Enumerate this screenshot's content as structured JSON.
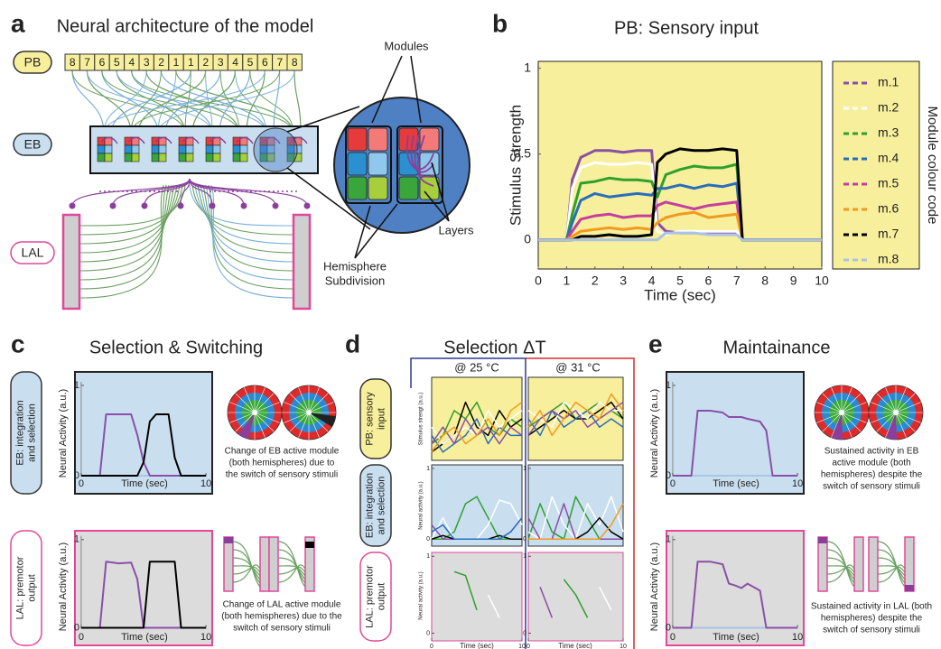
{
  "figure": {
    "a": {
      "letter": "a",
      "title": "Neural architecture of the model",
      "pb": "PB",
      "eb": "EB",
      "lal": "LAL",
      "pb_numbers": [
        8,
        7,
        6,
        5,
        4,
        3,
        2,
        1,
        1,
        2,
        3,
        4,
        5,
        6,
        7,
        8
      ],
      "modules": "Modules",
      "hemisphere": [
        "Hemisphere",
        "Subdivision"
      ],
      "layers": "Layers"
    },
    "b": {
      "letter": "b",
      "title": "PB: Sensory input"
    },
    "c": {
      "letter": "c",
      "title": "Selection & Switching",
      "eb_side": [
        "EB: integration",
        "and selection"
      ],
      "lal_side": [
        "LAL: premotor",
        "output"
      ],
      "eb_caption": [
        "Change of EB active module",
        "(both hemispheres) due to",
        "the switch of sensory stimuli"
      ],
      "lal_caption": [
        "Change of LAL active module",
        "(both hemispheres) due to the",
        "switch of sensory stimuli"
      ]
    },
    "d": {
      "letter": "d",
      "title": "Selection ΔT",
      "col1": "@ 25 °C",
      "col2": "@ 31 °C",
      "pb_side": [
        "PB: sensory",
        "input"
      ],
      "eb_side": [
        "EB: integration",
        "and selection"
      ],
      "lal_side": [
        "LAL: premotor",
        "output"
      ]
    },
    "e": {
      "letter": "e",
      "title": "Maintainance",
      "eb_caption": [
        "Sustained activity in EB",
        "active module (both",
        "hemispheres) despite the",
        "switch of sensory stimuli"
      ],
      "lal_caption": [
        "Sustained activity in LAL (both",
        "hemispheres) despite the",
        "switch of sensory stimuli"
      ]
    }
  },
  "chart_data": [
    {
      "type": "line",
      "ylabel": "Stimulus Strength",
      "xlabel": "Time (sec)",
      "legend": "right",
      "legend_title": "Module colour code",
      "x": [
        0,
        1,
        1.2,
        1.5,
        2,
        2.5,
        3,
        3.5,
        4,
        4.2,
        4.5,
        5,
        5.5,
        6,
        6.5,
        7,
        7.2,
        10
      ],
      "xlim": [
        0,
        10
      ],
      "ylim": [
        -0.17,
        1.04
      ],
      "xticks": [
        0,
        1,
        2,
        3,
        4,
        5,
        6,
        7,
        8,
        9,
        10
      ],
      "yticks": [
        0,
        0.5,
        1
      ],
      "series": [
        {
          "name": "m.1",
          "color": "#8a4fa8",
          "values": [
            0,
            0,
            0.35,
            0.48,
            0.52,
            0.52,
            0.51,
            0.52,
            0.52,
            0.1,
            0.05,
            0.04,
            0.04,
            0.04,
            0.04,
            0.04,
            0,
            0
          ]
        },
        {
          "name": "m.2",
          "color": "#ffffff",
          "values": [
            0,
            0,
            0.3,
            0.42,
            0.45,
            0.44,
            0.44,
            0.45,
            0.44,
            0.05,
            0.03,
            0.05,
            0.05,
            0.05,
            0.05,
            0.05,
            0,
            0
          ]
        },
        {
          "name": "m.3",
          "color": "#2ea02e",
          "values": [
            0,
            0,
            0.15,
            0.33,
            0.34,
            0.36,
            0.35,
            0.35,
            0.34,
            0.25,
            0.38,
            0.41,
            0.43,
            0.42,
            0.42,
            0.44,
            0,
            0
          ]
        },
        {
          "name": "m.4",
          "color": "#2a6ebb",
          "values": [
            0,
            0,
            0.1,
            0.23,
            0.27,
            0.25,
            0.26,
            0.27,
            0.26,
            0.3,
            0.3,
            0.32,
            0.3,
            0.32,
            0.31,
            0.33,
            0,
            0
          ]
        },
        {
          "name": "m.5",
          "color": "#c43fa0",
          "values": [
            0,
            0,
            0.05,
            0.12,
            0.14,
            0.15,
            0.13,
            0.14,
            0.14,
            0.2,
            0.22,
            0.2,
            0.18,
            0.2,
            0.21,
            0.22,
            0,
            0
          ]
        },
        {
          "name": "m.6",
          "color": "#f39a1e",
          "values": [
            0,
            0,
            0.02,
            0.05,
            0.06,
            0.07,
            0.06,
            0.07,
            0.06,
            0.1,
            0.13,
            0.15,
            0.16,
            0.13,
            0.14,
            0.15,
            0,
            0
          ]
        },
        {
          "name": "m.7",
          "color": "#000000",
          "values": [
            0,
            0,
            0,
            0.02,
            0.02,
            0.03,
            0.02,
            0.02,
            0.03,
            0.45,
            0.5,
            0.53,
            0.52,
            0.52,
            0.53,
            0.52,
            0,
            0
          ]
        },
        {
          "name": "m.8",
          "color": "#a9c4e4",
          "values": [
            0,
            0,
            0,
            0,
            0,
            0,
            0,
            0,
            0,
            0,
            0.04,
            0.04,
            0.04,
            0.03,
            0.03,
            0.03,
            0,
            0
          ]
        }
      ]
    },
    {
      "type": "line",
      "ylabel": "Neural Activity (a.u.)",
      "xlabel": "Time (sec)",
      "x": [
        0,
        1.5,
        2,
        3,
        4,
        4.5,
        5,
        5.5,
        6,
        7,
        7.5,
        8,
        10
      ],
      "xlim": [
        -0.5,
        10.5
      ],
      "ylim": [
        -0.2,
        1.15
      ],
      "xticks": [
        0,
        10
      ],
      "yticks": [
        0,
        1
      ],
      "series": [
        {
          "color": "#a9c4e4",
          "values": [
            0,
            0,
            0,
            0,
            0,
            0,
            0,
            0,
            0,
            0,
            0,
            0,
            0
          ]
        },
        {
          "color": "#8a4fa8",
          "values": [
            0,
            0,
            0.68,
            0.68,
            0.68,
            0.45,
            0.15,
            0,
            0,
            0,
            0,
            0,
            0
          ]
        },
        {
          "color": "#000000",
          "values": [
            0,
            0,
            0,
            0,
            0,
            0,
            0.15,
            0.6,
            0.68,
            0.68,
            0.2,
            0,
            0
          ]
        }
      ]
    },
    {
      "type": "line",
      "ylabel": "Neural Activity (a.u.)",
      "xlabel": "Time (sec)",
      "x": [
        0,
        1.5,
        2,
        3,
        4,
        4.5,
        5,
        5.5,
        6,
        7,
        7.5,
        8,
        10
      ],
      "xlim": [
        -0.5,
        10.5
      ],
      "ylim": [
        -0.2,
        1.1
      ],
      "xticks": [
        0,
        10
      ],
      "yticks": [
        0,
        1
      ],
      "series": [
        {
          "color": "#a9c4e4",
          "values": [
            0,
            0,
            0,
            0,
            0,
            0,
            0,
            0,
            0,
            0,
            0,
            0,
            0
          ]
        },
        {
          "color": "#8a4fa8",
          "values": [
            0,
            0,
            0.75,
            0.73,
            0.74,
            0.55,
            0,
            0,
            0,
            0,
            0,
            0,
            0
          ]
        },
        {
          "color": "#000000",
          "values": [
            0,
            0,
            0,
            0,
            0,
            0,
            0,
            0.75,
            0.75,
            0.75,
            0.75,
            0,
            0
          ]
        }
      ]
    },
    {
      "type": "line",
      "ylabel": "Stimulus strengt (a.u.)",
      "x": [
        0,
        1.25,
        2.5,
        3.75,
        5,
        6.25,
        7.5,
        8.75,
        10
      ],
      "xlim": [
        0,
        10
      ],
      "ylim": [
        0,
        1
      ],
      "series": [
        {
          "color": "#2ea02e",
          "values": [
            0.2,
            0.3,
            0.6,
            0.5,
            0.7,
            0.4,
            0.3,
            0.5,
            0.4
          ]
        },
        {
          "color": "#000000",
          "values": [
            0.1,
            0.2,
            0.3,
            0.7,
            0.4,
            0.3,
            0.6,
            0.4,
            0.5
          ]
        },
        {
          "color": "#2a6ebb",
          "values": [
            0.3,
            0.1,
            0.2,
            0.3,
            0.5,
            0.2,
            0.4,
            0.3,
            0.3
          ]
        },
        {
          "color": "#ffffff",
          "values": [
            0.4,
            0.2,
            0.3,
            0.4,
            0.3,
            0.6,
            0.4,
            0.5,
            0.6
          ]
        },
        {
          "color": "#8a4fa8",
          "values": [
            0.2,
            0.4,
            0.2,
            0.5,
            0.3,
            0.4,
            0.2,
            0.4,
            0.3
          ]
        },
        {
          "color": "#f39a1e",
          "values": [
            0.1,
            0.3,
            0.4,
            0.2,
            0.3,
            0.5,
            0.3,
            0.6,
            0.7
          ]
        }
      ]
    },
    {
      "type": "line",
      "x": [
        0,
        1.25,
        2.5,
        3.75,
        5,
        6.25,
        7.5,
        8.75,
        10
      ],
      "xlim": [
        0,
        10
      ],
      "ylim": [
        0,
        1
      ],
      "series": [
        {
          "color": "#2ea02e",
          "values": [
            0.4,
            0.5,
            0.6,
            0.7,
            0.5,
            0.6,
            0.7,
            0.6,
            0.5
          ]
        },
        {
          "color": "#000000",
          "values": [
            0.3,
            0.4,
            0.5,
            0.6,
            0.5,
            0.5,
            0.6,
            0.7,
            0.5
          ]
        },
        {
          "color": "#2a6ebb",
          "values": [
            0.5,
            0.3,
            0.6,
            0.4,
            0.5,
            0.6,
            0.4,
            0.5,
            0.4
          ]
        },
        {
          "color": "#ffffff",
          "values": [
            0.6,
            0.5,
            0.4,
            0.7,
            0.6,
            0.5,
            0.7,
            0.6,
            0.6
          ]
        },
        {
          "color": "#8a4fa8",
          "values": [
            0.3,
            0.5,
            0.6,
            0.5,
            0.6,
            0.4,
            0.5,
            0.6,
            0.7
          ]
        },
        {
          "color": "#f39a1e",
          "values": [
            0.4,
            0.6,
            0.3,
            0.5,
            0.7,
            0.6,
            0.5,
            0.8,
            0.6
          ]
        }
      ]
    },
    {
      "type": "line",
      "ylabel": "Neural activity (a.u.)",
      "x": [
        0,
        1.25,
        2.5,
        3.75,
        5,
        6.25,
        7.5,
        8.75,
        10
      ],
      "xlim": [
        0,
        10
      ],
      "ylim": [
        -0.1,
        1.05
      ],
      "yticks": [
        0,
        1
      ],
      "series": [
        {
          "color": "#2ea02e",
          "values": [
            0,
            0,
            0.1,
            0.5,
            0.6,
            0.3,
            0,
            0,
            0
          ]
        },
        {
          "color": "#ffffff",
          "values": [
            0,
            0.3,
            0,
            0,
            0,
            0.2,
            0.55,
            0.5,
            0.2
          ]
        },
        {
          "color": "#8a4fa8",
          "values": [
            0.2,
            0,
            0,
            0,
            0,
            0,
            0,
            0.1,
            0.3
          ]
        },
        {
          "color": "#000000",
          "values": [
            0,
            0.05,
            0,
            0,
            0,
            0,
            0.05,
            0,
            0
          ]
        },
        {
          "color": "#2a6ebb",
          "values": [
            0.1,
            0.2,
            0,
            0,
            0,
            0,
            0,
            0.1,
            0.3
          ]
        }
      ]
    },
    {
      "type": "line",
      "x": [
        0,
        1.25,
        2.5,
        3.75,
        5,
        6.25,
        7.5,
        8.75,
        10
      ],
      "xlim": [
        0,
        10
      ],
      "ylim": [
        -0.1,
        1.05
      ],
      "yticks": [
        0,
        1
      ],
      "series": [
        {
          "color": "#2ea02e",
          "values": [
            0,
            0.5,
            0.1,
            0,
            0.6,
            0.3,
            0,
            0,
            0
          ]
        },
        {
          "color": "#ffffff",
          "values": [
            0.1,
            0,
            0.6,
            0.2,
            0,
            0.5,
            0.2,
            0.6,
            0.1
          ]
        },
        {
          "color": "#8a4fa8",
          "values": [
            0.3,
            0,
            0,
            0.5,
            0,
            0,
            0,
            0,
            0
          ]
        },
        {
          "color": "#000000",
          "values": [
            0,
            0,
            0,
            0,
            0,
            0.1,
            0.3,
            0.1,
            0
          ]
        },
        {
          "color": "#f39a1e",
          "values": [
            0,
            0,
            0,
            0,
            0,
            0,
            0,
            0.2,
            0.5
          ]
        }
      ]
    },
    {
      "type": "line",
      "ylabel": "Neural activity (a.u.)",
      "xlabel": "Time (sec)",
      "x": [
        0,
        1.25,
        2.5,
        3.75,
        5,
        6.25,
        7.5,
        8.75,
        10
      ],
      "xlim": [
        0,
        10
      ],
      "ylim": [
        -0.1,
        1.05
      ],
      "xticks": [
        0,
        10
      ],
      "yticks": [
        0,
        1
      ],
      "series": [
        {
          "color": "#2ea02e",
          "values": [
            null,
            null,
            0.8,
            0.75,
            0.3,
            null,
            null,
            null,
            null
          ]
        },
        {
          "color": "#ffffff",
          "values": [
            null,
            null,
            null,
            null,
            null,
            0.5,
            0.2,
            null,
            null
          ]
        }
      ]
    },
    {
      "type": "line",
      "xlabel": "Time (sec)",
      "x": [
        0,
        1.25,
        2.5,
        3.75,
        5,
        6.25,
        7.5,
        8.75,
        10
      ],
      "xlim": [
        0,
        10
      ],
      "ylim": [
        -0.1,
        1.05
      ],
      "xticks": [
        0,
        10
      ],
      "yticks": [
        0,
        1
      ],
      "series": [
        {
          "color": "#8a4fa8",
          "values": [
            null,
            0.6,
            0.2,
            null,
            null,
            null,
            null,
            null,
            null
          ]
        },
        {
          "color": "#2ea02e",
          "values": [
            null,
            null,
            null,
            0.7,
            0.5,
            0.2,
            null,
            null,
            null
          ]
        },
        {
          "color": "#ffffff",
          "values": [
            null,
            null,
            null,
            null,
            null,
            null,
            0.6,
            0.3,
            null
          ]
        },
        {
          "color": "#f39a1e",
          "values": [
            null,
            null,
            null,
            null,
            null,
            null,
            null,
            null,
            0.3
          ]
        }
      ]
    },
    {
      "type": "line",
      "ylabel": "Neural Activity (a.u.)",
      "xlabel": "Time (sec)",
      "x": [
        0,
        1.5,
        2,
        3,
        4,
        4.5,
        5,
        5.5,
        6,
        7,
        7.5,
        8,
        10
      ],
      "xlim": [
        -0.5,
        10.5
      ],
      "ylim": [
        -0.2,
        1.15
      ],
      "xticks": [
        0,
        10
      ],
      "yticks": [
        0,
        1
      ],
      "series": [
        {
          "color": "#a9c4e4",
          "values": [
            0,
            0,
            0,
            0,
            0,
            0,
            0,
            0,
            0,
            0,
            0,
            0,
            0
          ]
        },
        {
          "color": "#8a4fa8",
          "values": [
            0,
            0,
            0.72,
            0.72,
            0.7,
            0.65,
            0.65,
            0.65,
            0.63,
            0.6,
            0.5,
            0,
            0
          ]
        }
      ]
    },
    {
      "type": "line",
      "ylabel": "Neural Activity (a.u.)",
      "xlabel": "Time (sec)",
      "x": [
        0,
        1.5,
        2,
        3,
        4,
        4.5,
        5,
        5.5,
        6,
        7,
        7.5,
        8,
        10
      ],
      "xlim": [
        -0.5,
        10.5
      ],
      "ylim": [
        -0.2,
        1.1
      ],
      "xticks": [
        0,
        10
      ],
      "yticks": [
        0,
        1
      ],
      "series": [
        {
          "color": "#a9c4e4",
          "values": [
            0,
            0,
            0,
            0,
            0,
            0,
            0,
            0,
            0,
            0,
            0,
            0,
            0
          ]
        },
        {
          "color": "#8a4fa8",
          "values": [
            0,
            0,
            0.75,
            0.75,
            0.72,
            0.5,
            0.48,
            0.45,
            0.5,
            0.42,
            0,
            0,
            0
          ]
        }
      ]
    }
  ]
}
